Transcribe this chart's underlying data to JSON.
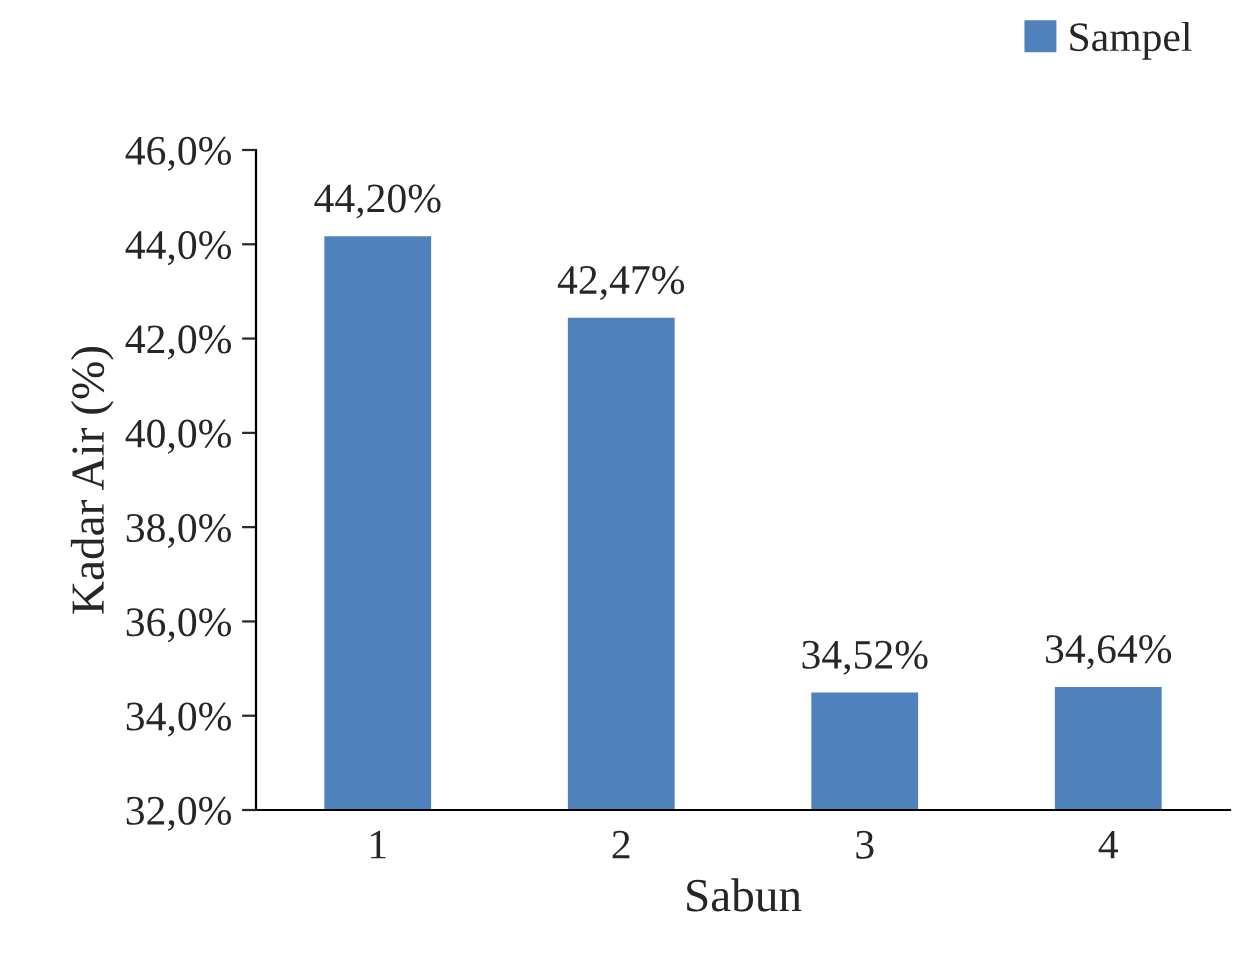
{
  "chart_data": {
    "type": "bar",
    "xlabel": "Sabun",
    "ylabel": "Kadar Air (%)",
    "categories": [
      "1",
      "2",
      "3",
      "4"
    ],
    "series": [
      {
        "name": "Sampel",
        "color": "#4f81bd",
        "values": [
          44.2,
          42.47,
          34.52,
          34.64
        ],
        "value_labels": [
          "44,20%",
          "42,47%",
          "34,52%",
          "34,64%"
        ]
      }
    ],
    "ylim": [
      32,
      46
    ],
    "yticks": [
      {
        "value": 32,
        "label": "32,0%"
      },
      {
        "value": 34,
        "label": "34,0%"
      },
      {
        "value": 36,
        "label": "36,0%"
      },
      {
        "value": 38,
        "label": "38,0%"
      },
      {
        "value": 40,
        "label": "40,0%"
      },
      {
        "value": 42,
        "label": "42,0%"
      },
      {
        "value": 44,
        "label": "44,0%"
      },
      {
        "value": 46,
        "label": "46,0%"
      }
    ],
    "legend": "top right",
    "grid": false
  }
}
